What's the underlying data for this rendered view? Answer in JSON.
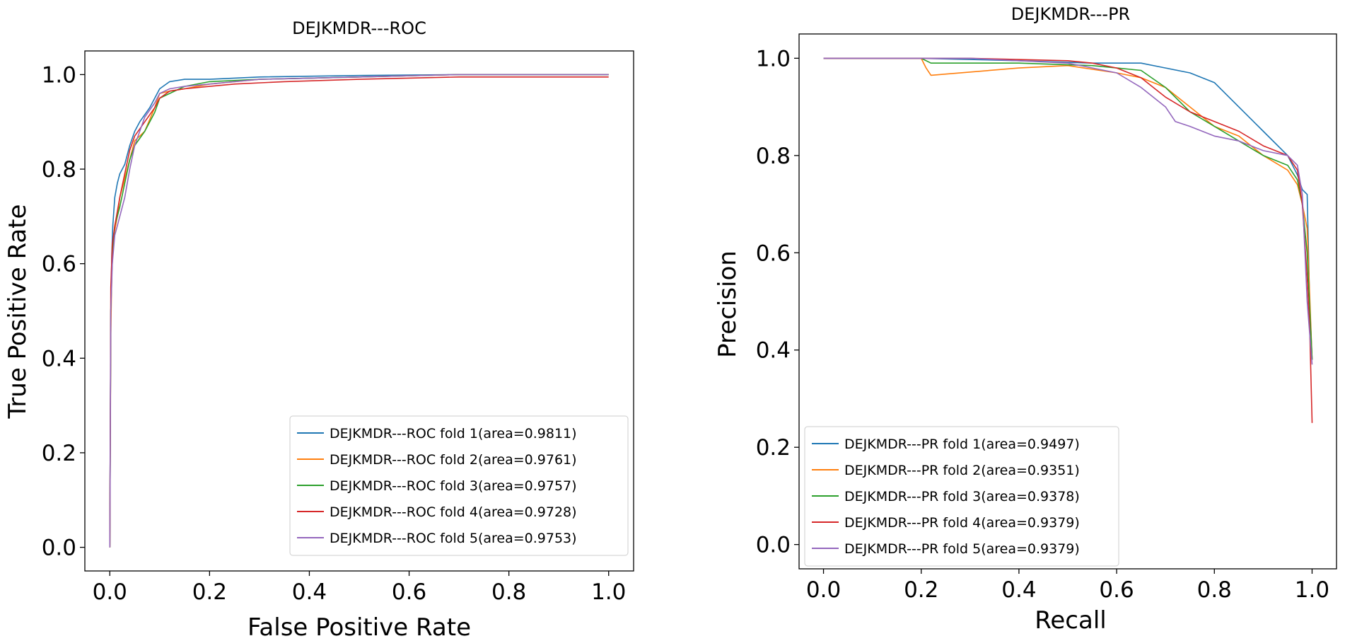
{
  "colors": {
    "series": [
      "#1f77b4",
      "#ff7f0e",
      "#2ca02c",
      "#d62728",
      "#9467bd"
    ]
  },
  "chart_data": [
    {
      "type": "line",
      "title": "DEJKMDR---ROC",
      "xlabel": "False Positive Rate",
      "ylabel": "True Positive Rate",
      "xlim": [
        -0.05,
        1.05
      ],
      "ylim": [
        -0.05,
        1.05
      ],
      "xticks": [
        "0.0",
        "0.2",
        "0.4",
        "0.6",
        "0.8",
        "1.0"
      ],
      "yticks": [
        "0.0",
        "0.2",
        "0.4",
        "0.6",
        "0.8",
        "1.0"
      ],
      "grid": false,
      "legend_position": "lower-right",
      "series": [
        {
          "name": "DEJKMDR---ROC fold 1(area=0.9811)",
          "x": [
            0,
            0.002,
            0.004,
            0.006,
            0.01,
            0.015,
            0.02,
            0.03,
            0.04,
            0.05,
            0.06,
            0.08,
            0.1,
            0.12,
            0.15,
            0.2,
            0.3,
            0.5,
            0.7,
            1.0
          ],
          "y": [
            0,
            0.5,
            0.62,
            0.68,
            0.74,
            0.77,
            0.79,
            0.81,
            0.85,
            0.88,
            0.9,
            0.93,
            0.97,
            0.985,
            0.99,
            0.99,
            0.995,
            0.998,
            1.0,
            1.0
          ]
        },
        {
          "name": "DEJKMDR---ROC fold 2(area=0.9761)",
          "x": [
            0,
            0.002,
            0.004,
            0.008,
            0.015,
            0.02,
            0.03,
            0.04,
            0.05,
            0.07,
            0.09,
            0.1,
            0.12,
            0.15,
            0.2,
            0.3,
            0.5,
            0.7,
            1.0
          ],
          "y": [
            0,
            0.45,
            0.58,
            0.66,
            0.7,
            0.74,
            0.78,
            0.82,
            0.86,
            0.88,
            0.93,
            0.96,
            0.965,
            0.97,
            0.98,
            0.99,
            0.995,
            1.0,
            1.0
          ]
        },
        {
          "name": "DEJKMDR---ROC fold 3(area=0.9757)",
          "x": [
            0,
            0.002,
            0.005,
            0.01,
            0.015,
            0.02,
            0.03,
            0.04,
            0.05,
            0.07,
            0.09,
            0.1,
            0.12,
            0.15,
            0.2,
            0.3,
            0.5,
            0.7,
            1.0
          ],
          "y": [
            0,
            0.5,
            0.62,
            0.68,
            0.7,
            0.72,
            0.77,
            0.82,
            0.85,
            0.88,
            0.92,
            0.95,
            0.96,
            0.975,
            0.985,
            0.99,
            0.995,
            1.0,
            1.0
          ]
        },
        {
          "name": "DEJKMDR---ROC fold 4(area=0.9728)",
          "x": [
            0,
            0.002,
            0.005,
            0.01,
            0.015,
            0.02,
            0.03,
            0.04,
            0.05,
            0.07,
            0.09,
            0.1,
            0.12,
            0.15,
            0.2,
            0.25,
            0.35,
            0.5,
            0.7,
            1.0
          ],
          "y": [
            0,
            0.55,
            0.64,
            0.68,
            0.71,
            0.74,
            0.79,
            0.84,
            0.87,
            0.9,
            0.93,
            0.95,
            0.965,
            0.97,
            0.975,
            0.98,
            0.985,
            0.99,
            0.995,
            0.995
          ]
        },
        {
          "name": "DEJKMDR---ROC fold 5(area=0.9753)",
          "x": [
            0,
            0.002,
            0.005,
            0.01,
            0.015,
            0.02,
            0.03,
            0.04,
            0.05,
            0.06,
            0.07,
            0.09,
            0.1,
            0.12,
            0.15,
            0.2,
            0.3,
            0.5,
            0.7,
            1.0
          ],
          "y": [
            0,
            0.5,
            0.6,
            0.66,
            0.68,
            0.7,
            0.74,
            0.8,
            0.85,
            0.88,
            0.91,
            0.94,
            0.96,
            0.97,
            0.975,
            0.98,
            0.99,
            0.995,
            1.0,
            1.0
          ]
        }
      ]
    },
    {
      "type": "line",
      "title": "DEJKMDR---PR",
      "xlabel": "Recall",
      "ylabel": "Precision",
      "xlim": [
        -0.05,
        1.05
      ],
      "ylim": [
        -0.05,
        1.05
      ],
      "xticks": [
        "0.0",
        "0.2",
        "0.4",
        "0.6",
        "0.8",
        "1.0"
      ],
      "yticks": [
        "0.0",
        "0.2",
        "0.4",
        "0.6",
        "0.8",
        "1.0"
      ],
      "grid": false,
      "legend_position": "lower-left",
      "series": [
        {
          "name": "DEJKMDR---PR fold 1(area=0.9497)",
          "x": [
            0,
            0.2,
            0.4,
            0.55,
            0.65,
            0.7,
            0.75,
            0.8,
            0.85,
            0.9,
            0.95,
            0.97,
            0.98,
            0.99,
            0.995,
            1.0
          ],
          "y": [
            1.0,
            1.0,
            0.995,
            0.99,
            0.99,
            0.98,
            0.97,
            0.95,
            0.9,
            0.85,
            0.8,
            0.76,
            0.73,
            0.72,
            0.5,
            0.38
          ]
        },
        {
          "name": "DEJKMDR---PR fold 2(area=0.9351)",
          "x": [
            0,
            0.2,
            0.21,
            0.22,
            0.4,
            0.5,
            0.6,
            0.65,
            0.7,
            0.75,
            0.8,
            0.85,
            0.9,
            0.95,
            0.97,
            0.98,
            0.99,
            1.0
          ],
          "y": [
            1.0,
            1.0,
            0.98,
            0.965,
            0.98,
            0.985,
            0.97,
            0.96,
            0.94,
            0.9,
            0.86,
            0.84,
            0.8,
            0.77,
            0.74,
            0.7,
            0.65,
            0.38
          ]
        },
        {
          "name": "DEJKMDR---PR fold 3(area=0.9378)",
          "x": [
            0,
            0.2,
            0.22,
            0.4,
            0.55,
            0.6,
            0.65,
            0.7,
            0.75,
            0.8,
            0.85,
            0.9,
            0.95,
            0.97,
            0.98,
            0.99,
            1.0
          ],
          "y": [
            1.0,
            1.0,
            0.99,
            0.99,
            0.985,
            0.98,
            0.975,
            0.94,
            0.89,
            0.86,
            0.83,
            0.8,
            0.78,
            0.75,
            0.7,
            0.6,
            0.38
          ]
        },
        {
          "name": "DEJKMDR---PR fold 4(area=0.9379)",
          "x": [
            0,
            0.3,
            0.5,
            0.55,
            0.6,
            0.65,
            0.7,
            0.75,
            0.8,
            0.85,
            0.9,
            0.95,
            0.97,
            0.98,
            0.99,
            0.995,
            1.0
          ],
          "y": [
            1.0,
            1.0,
            0.995,
            0.99,
            0.98,
            0.96,
            0.92,
            0.89,
            0.87,
            0.85,
            0.82,
            0.8,
            0.77,
            0.7,
            0.55,
            0.45,
            0.25
          ]
        },
        {
          "name": "DEJKMDR---PR fold 5(area=0.9379)",
          "x": [
            0,
            0.3,
            0.5,
            0.6,
            0.65,
            0.7,
            0.72,
            0.75,
            0.8,
            0.85,
            0.9,
            0.95,
            0.97,
            0.98,
            0.99,
            1.0
          ],
          "y": [
            1.0,
            1.0,
            0.99,
            0.97,
            0.94,
            0.9,
            0.87,
            0.86,
            0.84,
            0.83,
            0.81,
            0.8,
            0.78,
            0.72,
            0.5,
            0.37
          ]
        }
      ]
    }
  ]
}
